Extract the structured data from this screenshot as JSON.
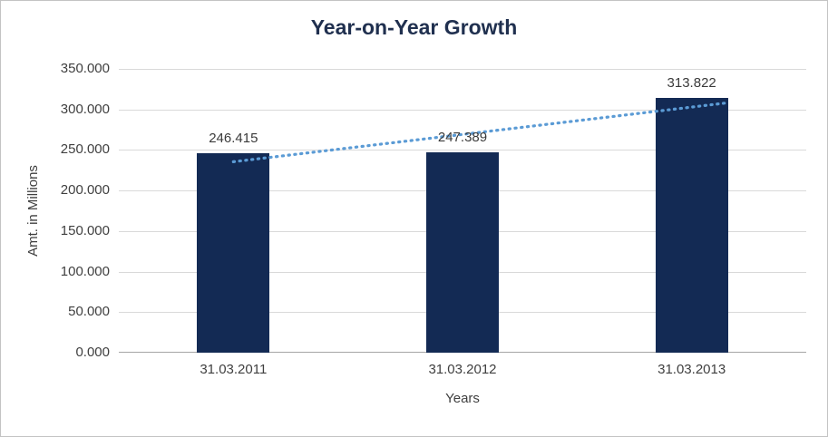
{
  "chart_data": {
    "type": "bar",
    "title": "Year-on-Year Growth",
    "xlabel": "Years",
    "ylabel": "Amt. in Millions",
    "categories": [
      "31.03.2011",
      "31.03.2012",
      "31.03.2013"
    ],
    "values": [
      246.415,
      247.389,
      313.822
    ],
    "data_labels": [
      "246.415",
      "247.389",
      "313.822"
    ],
    "ylim": [
      0,
      350
    ],
    "ytick_step": 50,
    "ytick_labels": [
      "0.000",
      "50.000",
      "100.000",
      "150.000",
      "200.000",
      "250.000",
      "300.000",
      "350.000"
    ],
    "grid": true,
    "legend": "none",
    "colors": {
      "bar": "#132a54",
      "trendline": "#5b9bd5",
      "gridline": "#d9d9d9",
      "axis_line": "#a6a6a6",
      "title_text": "#20304f",
      "tick_text": "#3f3f3f"
    },
    "trendline": {
      "type": "linear",
      "style": "dotted"
    }
  }
}
